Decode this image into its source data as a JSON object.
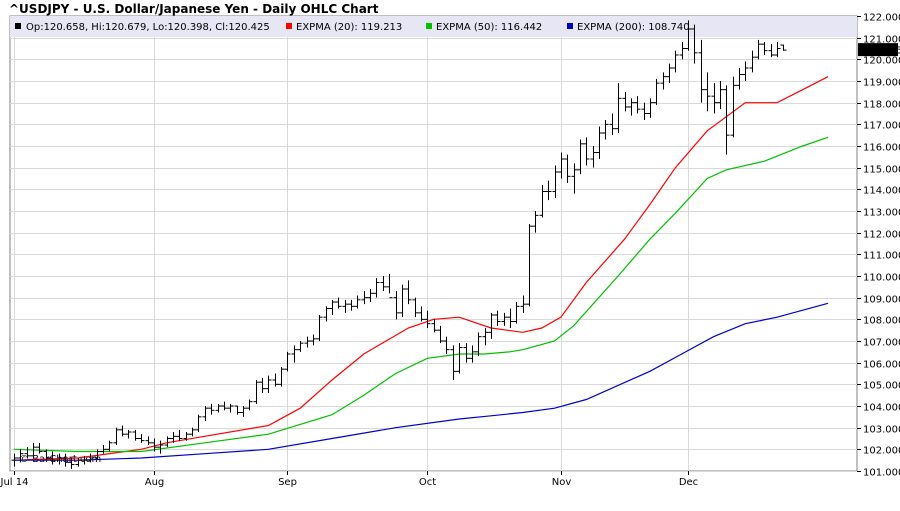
{
  "chart_data": {
    "type": "ohlc",
    "title": "^USDJPY - U.S. Dollar/Japanese Yen - Daily OHLC Chart",
    "watermark": "© BarChart.com",
    "ohlc_readout": "Op:120.658, Hi:120.679, Lo:120.398, Cl:120.425",
    "last_price_label": "120.425",
    "ylim": [
      101.0,
      122.0
    ],
    "y_ticks": [
      "101.000",
      "102.000",
      "103.000",
      "104.000",
      "105.000",
      "106.000",
      "107.000",
      "108.000",
      "109.000",
      "110.000",
      "111.000",
      "112.000",
      "113.000",
      "114.000",
      "115.000",
      "116.000",
      "117.000",
      "118.000",
      "119.000",
      "120.000",
      "121.000",
      "122.000"
    ],
    "x_ticks": [
      "Jul 14",
      "Aug",
      "Sep",
      "Oct",
      "Nov",
      "Dec"
    ],
    "grid": true,
    "legend_placement": "top",
    "colors": {
      "ema20": "#ff0000",
      "ema50": "#00c000",
      "ema200": "#0000cc",
      "bars": "#000000",
      "header_bg": "#e6e6f5"
    },
    "series": [
      {
        "name": "EXPMA (20): 119.213",
        "color": "#ff0000",
        "x_day": [
          0,
          10,
          20,
          24,
          30,
          40,
          45,
          50,
          55,
          62,
          66,
          70,
          75,
          80,
          83,
          86,
          90,
          96,
          100,
          104,
          109,
          115,
          120,
          124,
          128
        ],
        "values": [
          101.5,
          101.6,
          102.0,
          102.3,
          102.6,
          103.1,
          103.9,
          105.2,
          106.4,
          107.6,
          108.0,
          108.1,
          107.6,
          107.4,
          107.6,
          108.1,
          109.7,
          111.7,
          113.3,
          115.0,
          116.7,
          118.0,
          118.0,
          118.6,
          119.2
        ]
      },
      {
        "name": "EXPMA (50): 116.442",
        "color": "#00c000",
        "x_day": [
          0,
          10,
          20,
          30,
          40,
          50,
          55,
          60,
          65,
          70,
          74,
          78,
          80,
          85,
          88,
          95,
          100,
          104,
          109,
          112,
          118,
          124,
          128
        ],
        "values": [
          102.0,
          101.9,
          101.9,
          102.3,
          102.7,
          103.6,
          104.5,
          105.5,
          106.2,
          106.4,
          106.4,
          106.5,
          106.6,
          107.0,
          107.7,
          110.0,
          111.7,
          112.9,
          114.5,
          114.9,
          115.3,
          116.0,
          116.4
        ]
      },
      {
        "name": "EXPMA (200): 108.740",
        "color": "#0000cc",
        "x_day": [
          0,
          10,
          20,
          30,
          40,
          50,
          60,
          70,
          75,
          80,
          85,
          90,
          100,
          105,
          110,
          115,
          120,
          128
        ],
        "values": [
          101.5,
          101.5,
          101.6,
          101.8,
          102.0,
          102.5,
          103.0,
          103.4,
          103.55,
          103.7,
          103.9,
          104.3,
          105.6,
          106.4,
          107.2,
          107.8,
          108.1,
          108.74
        ]
      }
    ],
    "ohlc": [
      [
        0,
        101.5,
        101.8,
        101.2,
        101.6
      ],
      [
        1,
        101.6,
        102.0,
        101.4,
        101.8
      ],
      [
        2,
        101.8,
        102.1,
        101.6,
        101.7
      ],
      [
        3,
        101.7,
        102.3,
        101.6,
        102.1
      ],
      [
        4,
        102.1,
        102.3,
        101.8,
        101.9
      ],
      [
        5,
        101.9,
        102.0,
        101.5,
        101.6
      ],
      [
        6,
        101.6,
        101.9,
        101.3,
        101.5
      ],
      [
        7,
        101.5,
        101.8,
        101.3,
        101.6
      ],
      [
        8,
        101.6,
        101.8,
        101.2,
        101.4
      ],
      [
        9,
        101.4,
        101.6,
        101.1,
        101.3
      ],
      [
        10,
        101.3,
        101.6,
        101.2,
        101.5
      ],
      [
        11,
        101.5,
        101.7,
        101.3,
        101.5
      ],
      [
        12,
        101.5,
        101.8,
        101.4,
        101.6
      ],
      [
        13,
        101.6,
        102.0,
        101.5,
        101.9
      ],
      [
        14,
        101.9,
        102.2,
        101.8,
        102.0
      ],
      [
        15,
        102.0,
        102.4,
        101.9,
        102.3
      ],
      [
        16,
        102.3,
        103.0,
        102.2,
        102.9
      ],
      [
        17,
        102.9,
        103.1,
        102.6,
        102.7
      ],
      [
        18,
        102.7,
        102.9,
        102.5,
        102.8
      ],
      [
        19,
        102.8,
        102.9,
        102.4,
        102.5
      ],
      [
        20,
        102.5,
        102.7,
        102.3,
        102.4
      ],
      [
        21,
        102.4,
        102.6,
        102.2,
        102.3
      ],
      [
        22,
        102.3,
        102.5,
        101.9,
        102.1
      ],
      [
        23,
        102.1,
        102.4,
        101.8,
        102.2
      ],
      [
        24,
        102.2,
        102.6,
        102.1,
        102.5
      ],
      [
        25,
        102.5,
        102.8,
        102.3,
        102.6
      ],
      [
        26,
        102.6,
        102.9,
        102.4,
        102.5
      ],
      [
        27,
        102.5,
        102.8,
        102.4,
        102.7
      ],
      [
        28,
        102.7,
        103.0,
        102.6,
        102.9
      ],
      [
        29,
        102.9,
        103.6,
        102.8,
        103.5
      ],
      [
        30,
        103.5,
        104.0,
        103.3,
        103.9
      ],
      [
        31,
        103.9,
        104.1,
        103.6,
        103.8
      ],
      [
        32,
        103.8,
        104.1,
        103.7,
        104.0
      ],
      [
        33,
        104.0,
        104.2,
        103.8,
        103.9
      ],
      [
        34,
        103.9,
        104.1,
        103.7,
        104.0
      ],
      [
        35,
        104.0,
        104.0,
        103.6,
        103.7
      ],
      [
        36,
        103.7,
        104.0,
        103.5,
        103.9
      ],
      [
        37,
        103.9,
        104.3,
        103.8,
        104.2
      ],
      [
        38,
        104.2,
        105.2,
        104.1,
        105.1
      ],
      [
        39,
        105.1,
        105.3,
        104.6,
        104.8
      ],
      [
        40,
        104.8,
        105.4,
        104.6,
        105.2
      ],
      [
        41,
        105.2,
        105.5,
        104.9,
        105.0
      ],
      [
        42,
        105.0,
        105.8,
        104.9,
        105.7
      ],
      [
        43,
        105.7,
        106.5,
        105.6,
        106.4
      ],
      [
        44,
        106.4,
        106.8,
        106.0,
        106.6
      ],
      [
        45,
        106.6,
        107.0,
        106.5,
        106.9
      ],
      [
        46,
        106.9,
        107.2,
        106.7,
        107.0
      ],
      [
        47,
        107.0,
        107.3,
        106.8,
        107.1
      ],
      [
        48,
        107.1,
        108.2,
        107.0,
        108.1
      ],
      [
        49,
        108.1,
        108.6,
        107.9,
        108.5
      ],
      [
        50,
        108.5,
        108.9,
        108.2,
        108.8
      ],
      [
        51,
        108.8,
        109.0,
        108.5,
        108.6
      ],
      [
        52,
        108.6,
        108.9,
        108.3,
        108.7
      ],
      [
        53,
        108.7,
        108.9,
        108.4,
        108.6
      ],
      [
        54,
        108.6,
        109.1,
        108.5,
        108.9
      ],
      [
        55,
        108.9,
        109.3,
        108.7,
        109.0
      ],
      [
        56,
        109.0,
        109.4,
        108.8,
        109.2
      ],
      [
        57,
        109.2,
        109.9,
        109.0,
        109.7
      ],
      [
        58,
        109.7,
        110.0,
        109.3,
        109.5
      ],
      [
        59,
        109.5,
        110.1,
        109.2,
        109.0
      ],
      [
        60,
        109.0,
        109.3,
        108.0,
        108.3
      ],
      [
        61,
        108.3,
        109.6,
        108.1,
        109.4
      ],
      [
        62,
        109.4,
        109.8,
        108.7,
        108.9
      ],
      [
        63,
        108.9,
        109.0,
        108.1,
        108.3
      ],
      [
        64,
        108.3,
        108.6,
        107.9,
        108.0
      ],
      [
        65,
        108.0,
        108.4,
        107.6,
        107.8
      ],
      [
        66,
        107.8,
        108.0,
        107.4,
        107.5
      ],
      [
        67,
        107.5,
        107.7,
        106.9,
        107.0
      ],
      [
        68,
        107.0,
        107.2,
        106.4,
        106.6
      ],
      [
        69,
        106.6,
        106.8,
        105.2,
        105.6
      ],
      [
        70,
        105.6,
        106.9,
        105.5,
        106.7
      ],
      [
        71,
        106.7,
        106.9,
        106.0,
        106.2
      ],
      [
        72,
        106.2,
        106.8,
        106.0,
        106.5
      ],
      [
        73,
        106.5,
        107.4,
        106.3,
        107.2
      ],
      [
        74,
        107.2,
        107.6,
        106.8,
        107.4
      ],
      [
        75,
        107.4,
        108.3,
        107.1,
        108.2
      ],
      [
        76,
        108.2,
        108.4,
        107.7,
        107.9
      ],
      [
        77,
        107.9,
        108.3,
        107.7,
        108.1
      ],
      [
        78,
        108.1,
        108.5,
        107.6,
        107.9
      ],
      [
        79,
        107.9,
        108.8,
        107.8,
        108.6
      ],
      [
        80,
        108.6,
        109.1,
        108.3,
        108.7
      ],
      [
        81,
        108.7,
        112.4,
        108.6,
        112.3
      ],
      [
        82,
        112.3,
        113.0,
        112.0,
        112.8
      ],
      [
        83,
        112.8,
        114.2,
        112.7,
        113.9
      ],
      [
        84,
        113.9,
        114.4,
        113.5,
        113.9
      ],
      [
        85,
        113.9,
        115.1,
        113.6,
        114.8
      ],
      [
        86,
        114.8,
        115.7,
        114.5,
        115.4
      ],
      [
        87,
        115.4,
        115.6,
        114.3,
        114.6
      ],
      [
        88,
        114.6,
        115.2,
        113.8,
        114.9
      ],
      [
        89,
        114.9,
        116.3,
        114.7,
        116.1
      ],
      [
        90,
        116.1,
        116.4,
        115.1,
        115.4
      ],
      [
        91,
        115.4,
        116.0,
        115.0,
        115.7
      ],
      [
        92,
        115.7,
        116.9,
        115.4,
        116.6
      ],
      [
        93,
        116.6,
        117.2,
        116.3,
        117.0
      ],
      [
        94,
        117.0,
        117.5,
        116.5,
        116.8
      ],
      [
        95,
        116.8,
        118.9,
        116.6,
        118.2
      ],
      [
        96,
        118.2,
        118.5,
        117.6,
        117.8
      ],
      [
        97,
        117.8,
        118.2,
        117.4,
        118.0
      ],
      [
        98,
        118.0,
        118.3,
        117.5,
        117.7
      ],
      [
        99,
        117.7,
        118.0,
        117.2,
        117.5
      ],
      [
        100,
        117.5,
        118.2,
        117.3,
        118.0
      ],
      [
        101,
        118.0,
        119.1,
        117.9,
        118.9
      ],
      [
        102,
        118.9,
        119.4,
        118.6,
        119.2
      ],
      [
        103,
        119.2,
        119.8,
        118.9,
        119.6
      ],
      [
        104,
        119.6,
        120.4,
        119.4,
        120.2
      ],
      [
        105,
        120.2,
        120.8,
        120.0,
        120.5
      ],
      [
        106,
        120.5,
        121.8,
        120.4,
        121.4
      ],
      [
        107,
        121.4,
        121.6,
        119.8,
        120.3
      ],
      [
        108,
        120.3,
        120.9,
        118.0,
        118.6
      ],
      [
        109,
        118.6,
        119.4,
        117.6,
        118.3
      ],
      [
        110,
        118.3,
        118.9,
        117.5,
        118.0
      ],
      [
        111,
        118.0,
        119.0,
        117.7,
        118.6
      ],
      [
        112,
        118.6,
        118.8,
        115.6,
        116.5
      ],
      [
        113,
        116.5,
        119.2,
        116.4,
        118.8
      ],
      [
        114,
        118.8,
        119.6,
        118.6,
        119.3
      ],
      [
        115,
        119.3,
        119.9,
        119.0,
        119.6
      ],
      [
        116,
        119.6,
        120.4,
        119.4,
        120.1
      ],
      [
        117,
        120.1,
        120.9,
        120.0,
        120.7
      ],
      [
        118,
        120.7,
        120.8,
        120.2,
        120.4
      ],
      [
        119,
        120.4,
        120.7,
        120.1,
        120.2
      ],
      [
        120,
        120.2,
        120.8,
        120.1,
        120.5
      ],
      [
        121,
        120.658,
        120.679,
        120.398,
        120.425
      ]
    ],
    "month_start_days": [
      0,
      22,
      43,
      65,
      86,
      106
    ]
  }
}
